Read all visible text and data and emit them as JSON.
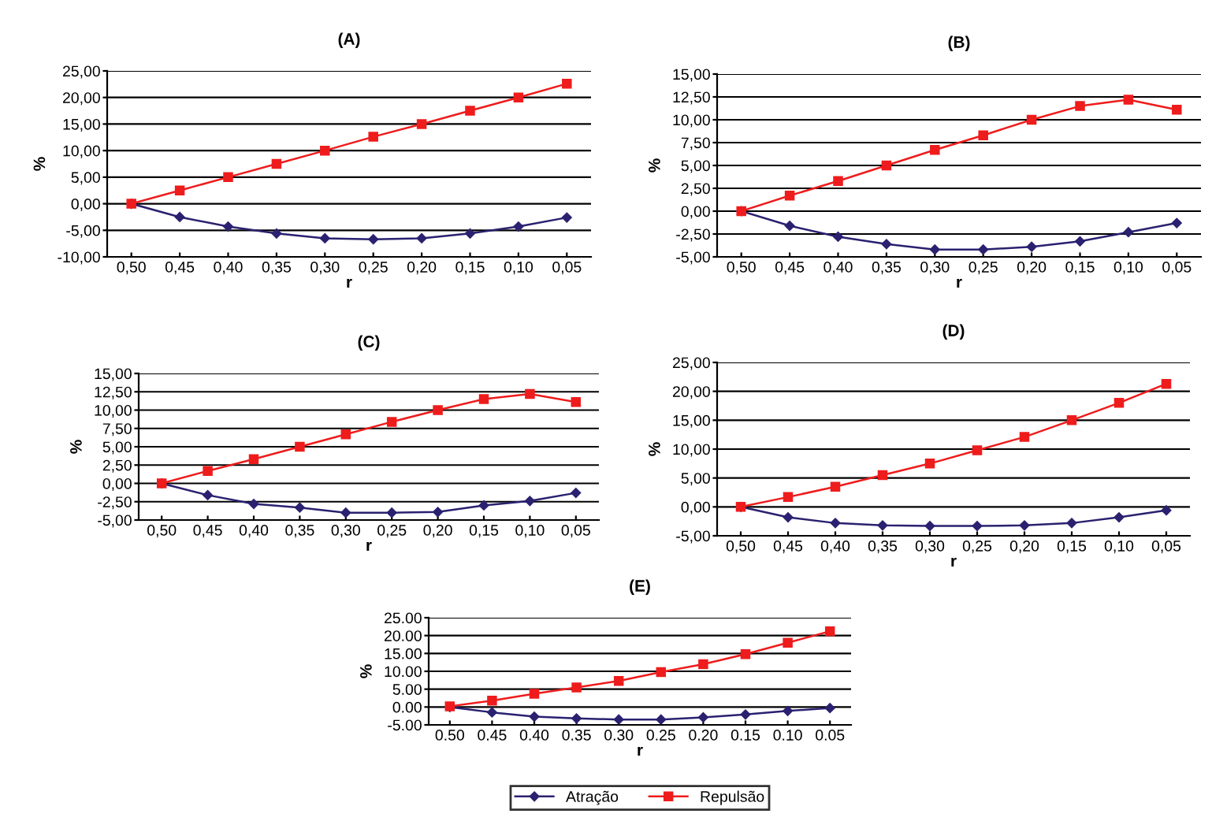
{
  "chart_data": [
    {
      "type": "line",
      "title": "(A)",
      "xlabel": "r",
      "ylabel": "%",
      "categories": [
        "0,50",
        "0,45",
        "0,40",
        "0,35",
        "0,30",
        "0,25",
        "0,20",
        "0,15",
        "0,10",
        "0,05"
      ],
      "ylim": [
        -10,
        25
      ],
      "yticks": [
        {
          "value": -10,
          "label": "-10,00"
        },
        {
          "value": -5,
          "label": "-5,00"
        },
        {
          "value": 0,
          "label": "0,00"
        },
        {
          "value": 5,
          "label": "5,00"
        },
        {
          "value": 10,
          "label": "10,00"
        },
        {
          "value": 15,
          "label": "15,00"
        },
        {
          "value": 20,
          "label": "20,00"
        },
        {
          "value": 25,
          "label": "25,00"
        }
      ],
      "grid": "y",
      "series": [
        {
          "color": "#2a2170",
          "marker": "diamond",
          "values": [
            0,
            -2.5,
            -4.3,
            -5.6,
            -6.5,
            -6.7,
            -6.5,
            -5.6,
            -4.3,
            -2.6
          ]
        },
        {
          "color": "#ee1c1c",
          "marker": "square",
          "values": [
            0,
            2.5,
            5.0,
            7.5,
            10.0,
            12.6,
            15.0,
            17.5,
            20.0,
            22.6
          ]
        }
      ]
    },
    {
      "type": "line",
      "title": "(B)",
      "xlabel": "r",
      "ylabel": "%",
      "categories": [
        "0,50",
        "0,45",
        "0,40",
        "0,35",
        "0,30",
        "0,25",
        "0,20",
        "0,15",
        "0,10",
        "0,05"
      ],
      "ylim": [
        -5,
        15
      ],
      "yticks": [
        {
          "value": -5,
          "label": "-5,00"
        },
        {
          "value": -2.5,
          "label": "-2,50"
        },
        {
          "value": 0,
          "label": "0,00"
        },
        {
          "value": 2.5,
          "label": "2,50"
        },
        {
          "value": 5,
          "label": "5,00"
        },
        {
          "value": 7.5,
          "label": "7,50"
        },
        {
          "value": 10,
          "label": "10,00"
        },
        {
          "value": 12.5,
          "label": "12,50"
        },
        {
          "value": 15,
          "label": "15,00"
        }
      ],
      "grid": "y",
      "series": [
        {
          "color": "#2a2170",
          "marker": "diamond",
          "values": [
            0,
            -1.6,
            -2.8,
            -3.6,
            -4.2,
            -4.2,
            -3.9,
            -3.3,
            -2.3,
            -1.3
          ]
        },
        {
          "color": "#ee1c1c",
          "marker": "square",
          "values": [
            0,
            1.7,
            3.3,
            5.0,
            6.7,
            8.3,
            10.0,
            11.5,
            12.2,
            11.1
          ]
        }
      ]
    },
    {
      "type": "line",
      "title": "(C)",
      "xlabel": "r",
      "ylabel": "%",
      "categories": [
        "0,50",
        "0,45",
        "0,40",
        "0,35",
        "0,30",
        "0,25",
        "0,20",
        "0,15",
        "0,10",
        "0,05"
      ],
      "ylim": [
        -5,
        15
      ],
      "yticks": [
        {
          "value": -5,
          "label": "-5,00"
        },
        {
          "value": -2.5,
          "label": "-2,50"
        },
        {
          "value": 0,
          "label": "0,00"
        },
        {
          "value": 2.5,
          "label": "2,50"
        },
        {
          "value": 5,
          "label": "5,00"
        },
        {
          "value": 7.5,
          "label": "7,50"
        },
        {
          "value": 10,
          "label": "10,00"
        },
        {
          "value": 12.5,
          "label": "12,50"
        },
        {
          "value": 15,
          "label": "15,00"
        }
      ],
      "grid": "y",
      "series": [
        {
          "color": "#2a2170",
          "marker": "diamond",
          "values": [
            0,
            -1.6,
            -2.8,
            -3.3,
            -4.0,
            -4.0,
            -3.9,
            -3.0,
            -2.4,
            -1.3
          ]
        },
        {
          "color": "#ee1c1c",
          "marker": "square",
          "values": [
            0,
            1.7,
            3.3,
            5.0,
            6.7,
            8.4,
            10.0,
            11.5,
            12.2,
            11.1
          ]
        }
      ]
    },
    {
      "type": "line",
      "title": "(D)",
      "xlabel": "r",
      "ylabel": "%",
      "categories": [
        "0,50",
        "0,45",
        "0,40",
        "0,35",
        "0,30",
        "0,25",
        "0,20",
        "0,15",
        "0,10",
        "0,05"
      ],
      "ylim": [
        -5,
        25
      ],
      "yticks": [
        {
          "value": -5,
          "label": "-5,00"
        },
        {
          "value": 0,
          "label": "0,00"
        },
        {
          "value": 5,
          "label": "5,00"
        },
        {
          "value": 10,
          "label": "10,00"
        },
        {
          "value": 15,
          "label": "15,00"
        },
        {
          "value": 20,
          "label": "20,00"
        },
        {
          "value": 25,
          "label": "25,00"
        }
      ],
      "grid": "y",
      "series": [
        {
          "color": "#2a2170",
          "marker": "diamond",
          "values": [
            0,
            -1.8,
            -2.8,
            -3.2,
            -3.3,
            -3.3,
            -3.2,
            -2.8,
            -1.8,
            -0.6
          ]
        },
        {
          "color": "#ee1c1c",
          "marker": "square",
          "values": [
            0,
            1.7,
            3.5,
            5.5,
            7.5,
            9.8,
            12.1,
            15.0,
            18.0,
            21.3
          ]
        }
      ]
    },
    {
      "type": "line",
      "title": "(E)",
      "xlabel": "r",
      "ylabel": "%",
      "categories": [
        "0.50",
        "0.45",
        "0.40",
        "0.35",
        "0.30",
        "0.25",
        "0.20",
        "0.15",
        "0.10",
        "0.05"
      ],
      "ylim": [
        -5,
        25
      ],
      "yticks": [
        {
          "value": -5,
          "label": "-5.00"
        },
        {
          "value": 0,
          "label": "0.00"
        },
        {
          "value": 5,
          "label": "5.00"
        },
        {
          "value": 10,
          "label": "10.00"
        },
        {
          "value": 15,
          "label": "15.00"
        },
        {
          "value": 20,
          "label": "20.00"
        },
        {
          "value": 25,
          "label": "25.00"
        }
      ],
      "grid": "y",
      "legend": "bottom",
      "series": [
        {
          "name": "Atração",
          "color": "#2a2170",
          "marker": "diamond",
          "values": [
            0,
            -1.5,
            -2.7,
            -3.2,
            -3.5,
            -3.5,
            -2.9,
            -2.1,
            -1.1,
            -0.3
          ]
        },
        {
          "name": "Repulsão",
          "color": "#ee1c1c",
          "marker": "square",
          "values": [
            0.2,
            1.8,
            3.7,
            5.5,
            7.3,
            9.8,
            12.0,
            14.8,
            18.0,
            21.2
          ]
        }
      ]
    }
  ]
}
